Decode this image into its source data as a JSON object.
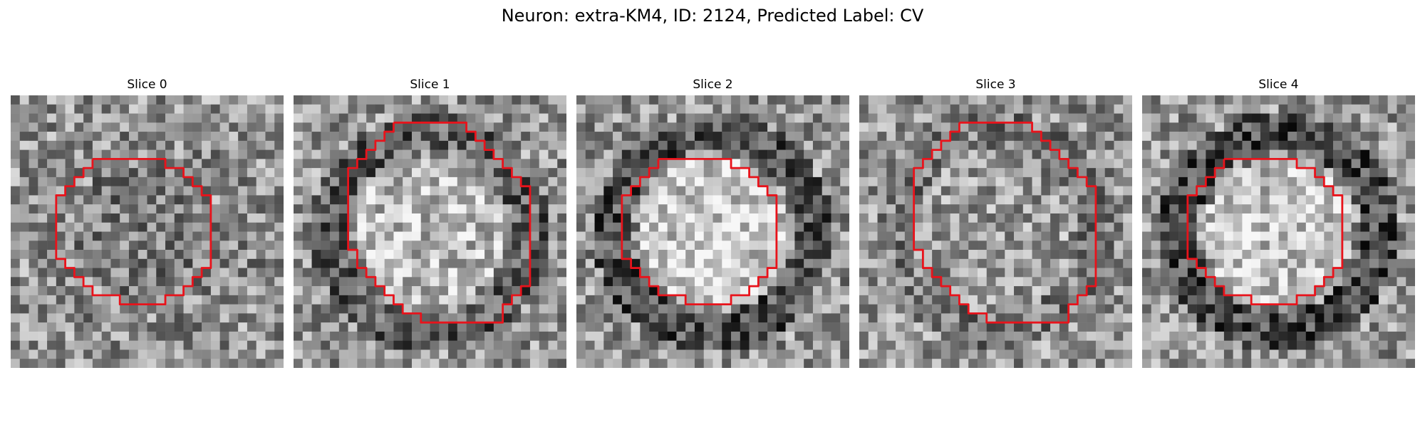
{
  "figure": {
    "title": "Neuron: extra-KM4, ID: 2124, Predicted Label: CV",
    "contour_color": "#e8131b",
    "image_colormap": "gray",
    "grid_size": 30
  },
  "slices": [
    {
      "title": "Slice 0",
      "ring_darkness": 0.05,
      "inner_brightness": -0.15,
      "contour": "medium"
    },
    {
      "title": "Slice 1",
      "ring_darkness": 0.35,
      "inner_brightness": 0.25,
      "contour": "large"
    },
    {
      "title": "Slice 2",
      "ring_darkness": 0.45,
      "inner_brightness": 0.35,
      "contour": "medium"
    },
    {
      "title": "Slice 3",
      "ring_darkness": 0.15,
      "inner_brightness": 0.05,
      "contour": "large"
    },
    {
      "title": "Slice 4",
      "ring_darkness": 0.5,
      "inner_brightness": 0.3,
      "contour": "medium"
    }
  ]
}
